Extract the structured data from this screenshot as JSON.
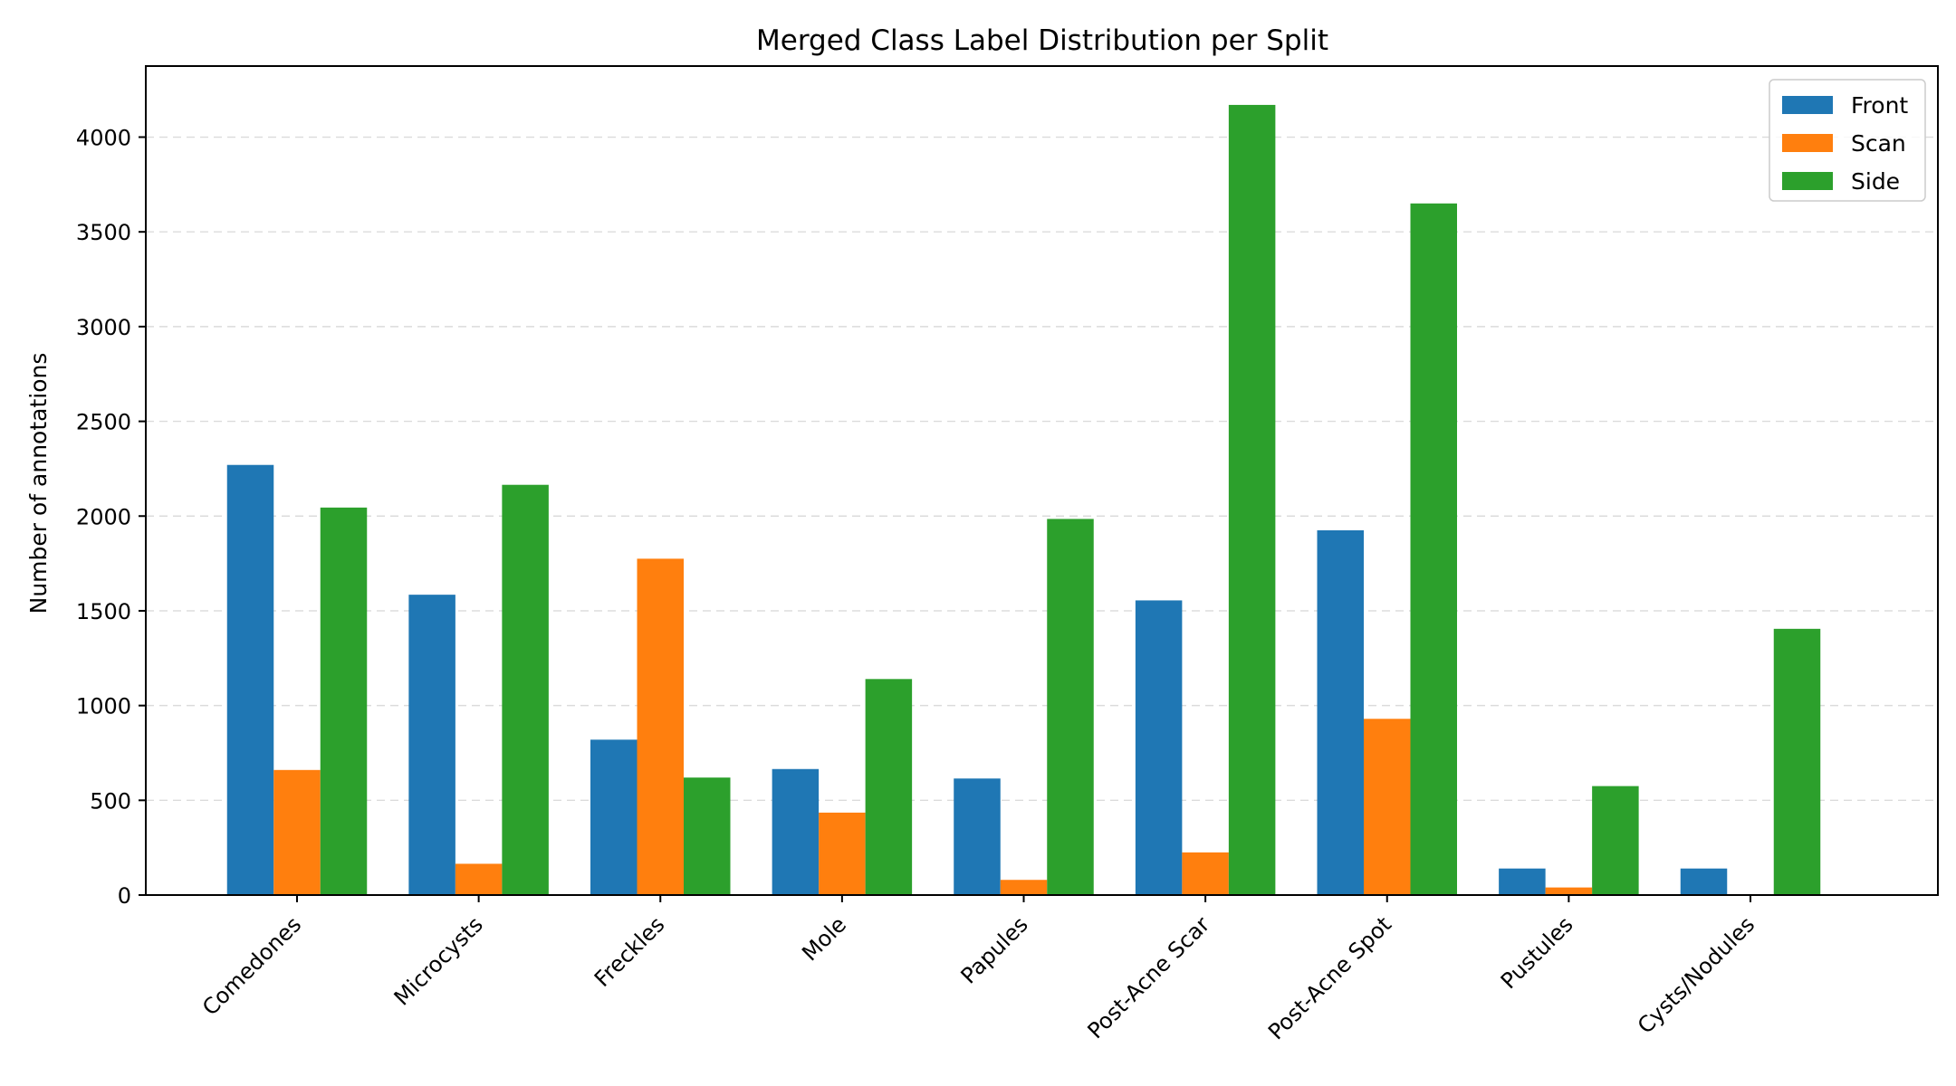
{
  "chart_data": {
    "type": "bar",
    "title": "Merged Class Label Distribution per Split",
    "xlabel": "",
    "ylabel": "Number of annotations",
    "categories": [
      "Comedones",
      "Microcysts",
      "Freckles",
      "Mole",
      "Papules",
      "Post-Acne Scar",
      "Post-Acne Spot",
      "Pustules",
      "Cysts/Nodules"
    ],
    "series": [
      {
        "name": "Front",
        "color": "#1f77b4",
        "values": [
          2270,
          1585,
          820,
          665,
          615,
          1555,
          1925,
          140,
          140
        ]
      },
      {
        "name": "Scan",
        "color": "#ff7f0e",
        "values": [
          660,
          165,
          1775,
          435,
          80,
          225,
          930,
          40,
          5
        ]
      },
      {
        "name": "Side",
        "color": "#2ca02c",
        "values": [
          2045,
          2165,
          620,
          1140,
          1985,
          4170,
          3650,
          575,
          1405
        ]
      }
    ],
    "ylim": [
      0,
      4375
    ],
    "yticks": [
      0,
      500,
      1000,
      1500,
      2000,
      2500,
      3000,
      3500,
      4000
    ],
    "grid": "horizontal dashed",
    "legend": "top-right"
  }
}
